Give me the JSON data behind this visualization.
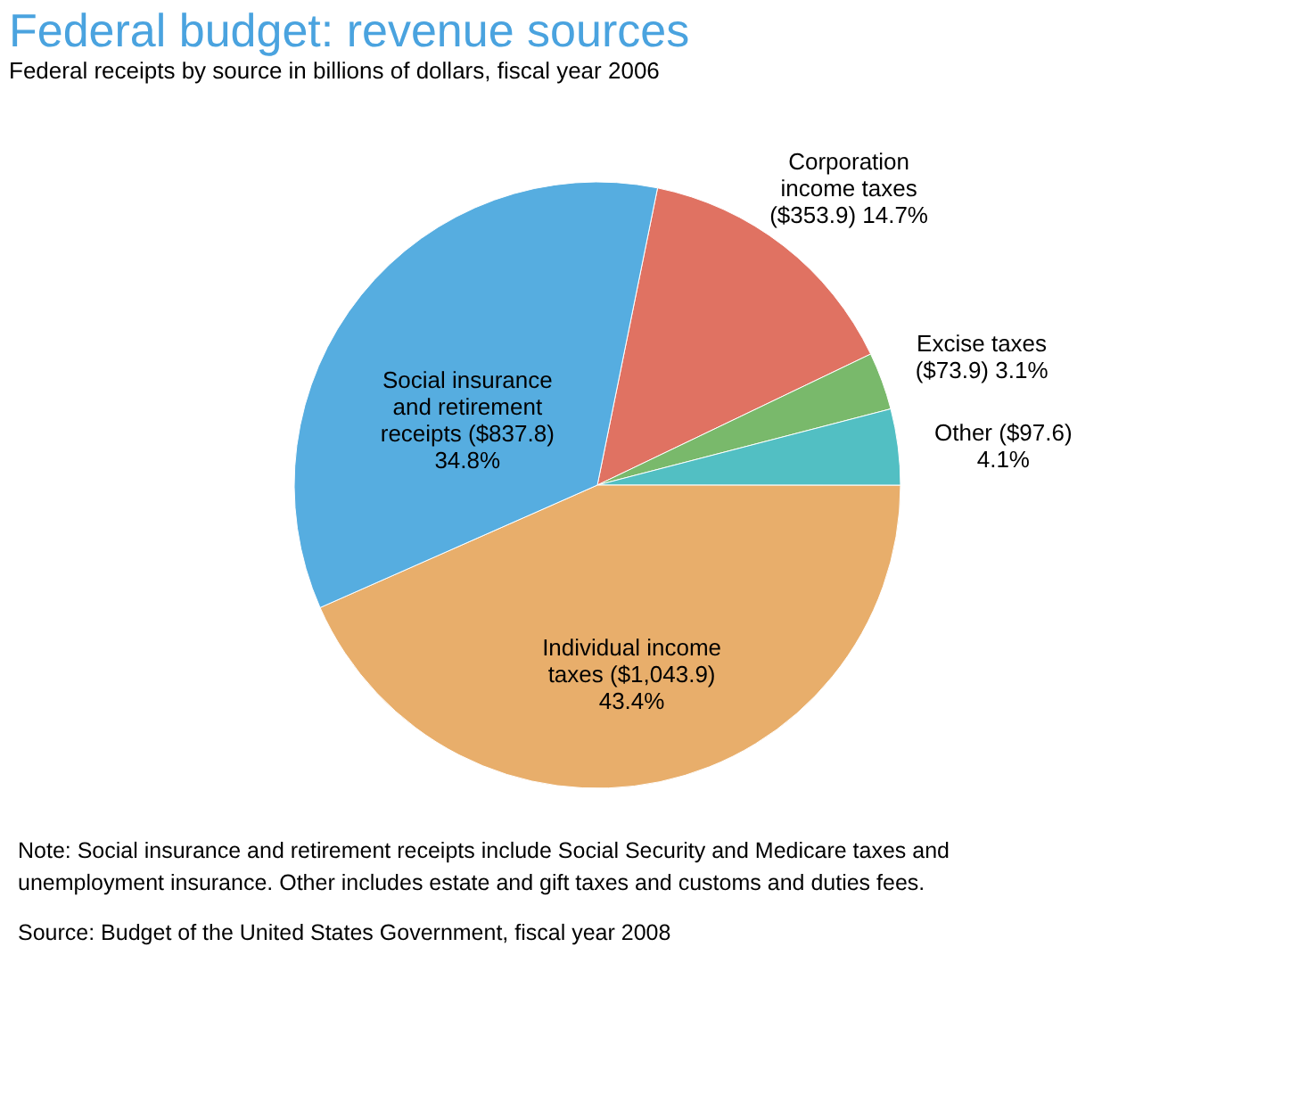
{
  "chart_data": {
    "type": "pie",
    "title": "Federal budget: revenue sources",
    "subtitle": "Federal receipts by source in billions of dollars, fiscal year 2006",
    "categories": [
      "Corporation\nincome taxes\n($353.9) 14.7%",
      "Excise taxes\n($73.9) 3.1%",
      "Other ($97.6)\n4.1%",
      "Individual income\ntaxes ($1,043.9)\n43.4%",
      "Social insurance\nand retirement\nreceipts ($837.8)\n34.8%"
    ],
    "values": [
      353.9,
      73.9,
      97.6,
      1043.9,
      837.8
    ],
    "colors": [
      "#e07262",
      "#79b96b",
      "#52bfc3",
      "#e8ae6b",
      "#56ade0"
    ],
    "annotations": [
      "Note:  Social insurance and retirement receipts include Social Security and Medicare taxes and",
      "unemployment insurance. Other includes estate and gift taxes and customs and duties fees.",
      "Source:  Budget of the United States Government, fiscal year 2008"
    ]
  }
}
